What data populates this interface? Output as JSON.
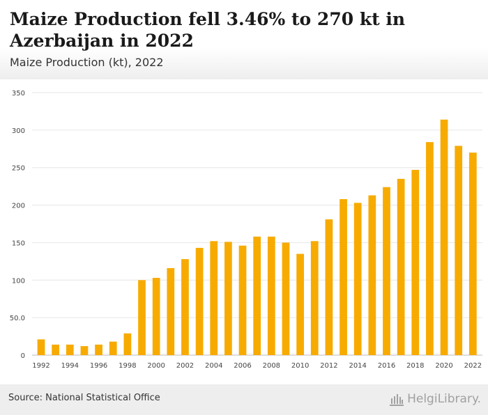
{
  "header": {
    "title": "Maize Production fell 3.46% to 270 kt in Azerbaijan in 2022",
    "subtitle": "Maize Production (kt), 2022"
  },
  "footer": {
    "source": "Source: National Statistical Office",
    "brand": "HelgiLibrary."
  },
  "colors": {
    "bar": "#f7ab00",
    "grid": "#e6e6e6",
    "axis_text": "#444444"
  },
  "chart_data": {
    "type": "bar",
    "title": "Maize Production fell 3.46% to 270 kt in Azerbaijan in 2022",
    "subtitle": "Maize Production (kt), 2022",
    "categories": [
      "1992",
      "1993",
      "1994",
      "1995",
      "1996",
      "1997",
      "1998",
      "1999",
      "2000",
      "2001",
      "2002",
      "2003",
      "2004",
      "2005",
      "2006",
      "2007",
      "2008",
      "2009",
      "2010",
      "2011",
      "2012",
      "2013",
      "2014",
      "2015",
      "2016",
      "2017",
      "2018",
      "2019",
      "2020",
      "2021",
      "2022"
    ],
    "x_tick_labels": [
      "1992",
      "1994",
      "1996",
      "1998",
      "2000",
      "2002",
      "2004",
      "2006",
      "2008",
      "2010",
      "2012",
      "2014",
      "2016",
      "2018",
      "2020",
      "2022"
    ],
    "values": [
      21,
      14,
      14,
      12,
      14,
      18,
      29,
      100,
      103,
      116,
      128,
      143,
      152,
      151,
      146,
      158,
      158,
      150,
      135,
      152,
      181,
      208,
      203,
      213,
      224,
      235,
      247,
      284,
      314,
      279,
      270
    ],
    "y_ticks": [
      0,
      50,
      100,
      150,
      200,
      250,
      300,
      350
    ],
    "y_tick_labels": [
      "0",
      "50.0",
      "100",
      "150",
      "200",
      "250",
      "300",
      "350"
    ],
    "ylim": [
      0,
      350
    ],
    "grid": true,
    "legend": "none"
  }
}
